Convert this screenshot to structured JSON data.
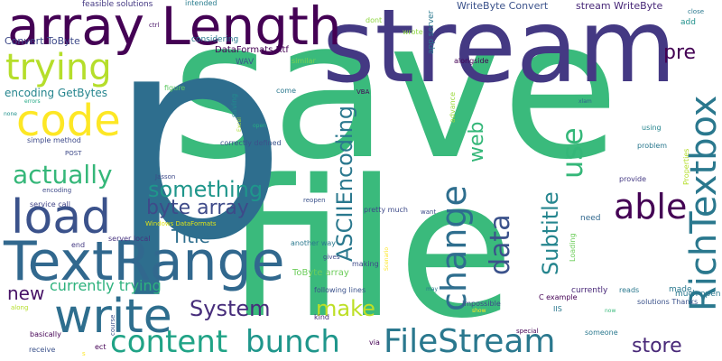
{
  "words": [
    {
      "text": "save",
      "color": "#3aba7c"
    },
    {
      "text": "file",
      "color": "#3aba7c"
    },
    {
      "text": "p",
      "color": "#2e6e8e"
    },
    {
      "text": "stream",
      "color": "#443983"
    },
    {
      "text": "array Length",
      "color": "#440154"
    },
    {
      "text": "TextRange",
      "color": "#31688e"
    },
    {
      "text": "write",
      "color": "#2e6e8e"
    },
    {
      "text": "load",
      "color": "#3b528b"
    },
    {
      "text": "code",
      "color": "#fde725"
    },
    {
      "text": "trying",
      "color": "#b5de2b"
    },
    {
      "text": "content",
      "color": "#20a386"
    },
    {
      "text": "bunch",
      "color": "#1f968b"
    },
    {
      "text": "FileStream",
      "color": "#2a788e"
    },
    {
      "text": "change",
      "color": "#2e6e8e"
    },
    {
      "text": "RichTextbox",
      "color": "#2a788e"
    },
    {
      "text": "able",
      "color": "#440154"
    },
    {
      "text": "use",
      "color": "#35b779"
    },
    {
      "text": "actually",
      "color": "#35b779"
    },
    {
      "text": "something",
      "color": "#1f968b"
    },
    {
      "text": "byte array",
      "color": "#3e4a89"
    },
    {
      "text": "data",
      "color": "#3b528b"
    },
    {
      "text": "make",
      "color": "#bddf26"
    },
    {
      "text": "System",
      "color": "#472d7b"
    },
    {
      "text": "store",
      "color": "#482878"
    },
    {
      "text": "Title",
      "color": "#2e6e8e"
    },
    {
      "text": "ASCIIEncoding",
      "color": "#2a788e"
    },
    {
      "text": "web",
      "color": "#35b779"
    },
    {
      "text": "Subtitle",
      "color": "#25858e"
    },
    {
      "text": "pre",
      "color": "#440154"
    },
    {
      "text": "new",
      "color": "#481467"
    },
    {
      "text": "currently trying",
      "color": "#2db27d"
    },
    {
      "text": "encoding GetBytes",
      "color": "#25858e"
    },
    {
      "text": "Convert ToByte",
      "color": "#3e4a89"
    },
    {
      "text": "WriteByte Convert",
      "color": "#3b528b"
    },
    {
      "text": "stream WriteByte",
      "color": "#482878"
    },
    {
      "text": "feasible solutions",
      "color": "#443983"
    },
    {
      "text": "intended",
      "color": "#287c8e"
    },
    {
      "text": "considering",
      "color": "#2a788e"
    },
    {
      "text": "DataFormats Rtf",
      "color": "#440154"
    },
    {
      "text": "WAV",
      "color": "#3b528b"
    },
    {
      "text": "similar",
      "color": "#7ad151"
    },
    {
      "text": "dont",
      "color": "#90d743"
    },
    {
      "text": "wrote",
      "color": "#8fd744"
    },
    {
      "text": "app server",
      "color": "#2a788e"
    },
    {
      "text": "alongside",
      "color": "#440154"
    },
    {
      "text": "add",
      "color": "#21918c"
    },
    {
      "text": "close",
      "color": "#2a788e"
    },
    {
      "text": "ctrl",
      "color": "#481467"
    },
    {
      "text": "figure",
      "color": "#5ec962"
    },
    {
      "text": "VBA",
      "color": "#440154"
    },
    {
      "text": "come",
      "color": "#2a788e"
    },
    {
      "text": "saving",
      "color": "#228c8d"
    },
    {
      "text": "Excel",
      "color": "#aadc32"
    },
    {
      "text": "open",
      "color": "#26ad81"
    },
    {
      "text": "correctly defined",
      "color": "#3b528b"
    },
    {
      "text": "advance",
      "color": "#9bd93c"
    },
    {
      "text": "xlam",
      "color": "#32648e"
    },
    {
      "text": "using",
      "color": "#25858e"
    },
    {
      "text": "problem",
      "color": "#2a788e"
    },
    {
      "text": "provide",
      "color": "#443983"
    },
    {
      "text": "Properties",
      "color": "#b5de2b"
    },
    {
      "text": "errors",
      "color": "#22a884"
    },
    {
      "text": "none",
      "color": "#21918c"
    },
    {
      "text": "simple method",
      "color": "#3e4a89"
    },
    {
      "text": "POST",
      "color": "#3e4a89"
    },
    {
      "text": "encoding",
      "color": "#3e4a89"
    },
    {
      "text": "Jasson",
      "color": "#3e4a89"
    },
    {
      "text": "reopen",
      "color": "#3b528b"
    },
    {
      "text": "service call",
      "color": "#414487"
    },
    {
      "text": "Windows DataFormats",
      "color": "#dde318"
    },
    {
      "text": "pretty much",
      "color": "#3e4a89"
    },
    {
      "text": "want",
      "color": "#3e4a89"
    },
    {
      "text": "need",
      "color": "#31688e"
    },
    {
      "text": "end",
      "color": "#443983"
    },
    {
      "text": "server local",
      "color": "#46337f"
    },
    {
      "text": "another way",
      "color": "#2a788e"
    },
    {
      "text": "gives",
      "color": "#3e4a89"
    },
    {
      "text": "Loading",
      "color": "#6ccd5a"
    },
    {
      "text": "Scenario",
      "color": "#fde725"
    },
    {
      "text": "making",
      "color": "#3e4a89"
    },
    {
      "text": "ToByte array",
      "color": "#6ccd5a"
    },
    {
      "text": "following lines",
      "color": "#3b528b"
    },
    {
      "text": "currently",
      "color": "#482878"
    },
    {
      "text": "reads",
      "color": "#2a788e"
    },
    {
      "text": "made",
      "color": "#2a788e"
    },
    {
      "text": "much open",
      "color": "#2a788e"
    },
    {
      "text": "solutions Thanks",
      "color": "#3b528b"
    },
    {
      "text": "impossible",
      "color": "#3e4a89"
    },
    {
      "text": "C example",
      "color": "#440154"
    },
    {
      "text": "IIS",
      "color": "#2a788e"
    },
    {
      "text": "kind",
      "color": "#482878"
    },
    {
      "text": "along",
      "color": "#b5de2b"
    },
    {
      "text": "course",
      "color": "#3b528b"
    },
    {
      "text": "basically",
      "color": "#440154"
    },
    {
      "text": "someone",
      "color": "#2a788e"
    },
    {
      "text": "special",
      "color": "#440154"
    },
    {
      "text": "receive",
      "color": "#3b528b"
    },
    {
      "text": "ect",
      "color": "#440154"
    },
    {
      "text": "via",
      "color": "#440154"
    },
    {
      "text": "may",
      "color": "#2a788e"
    },
    {
      "text": "show",
      "color": "#fde725"
    },
    {
      "text": "now",
      "color": "#3aba7c"
    },
    {
      "text": "s",
      "color": "#fde725"
    }
  ]
}
